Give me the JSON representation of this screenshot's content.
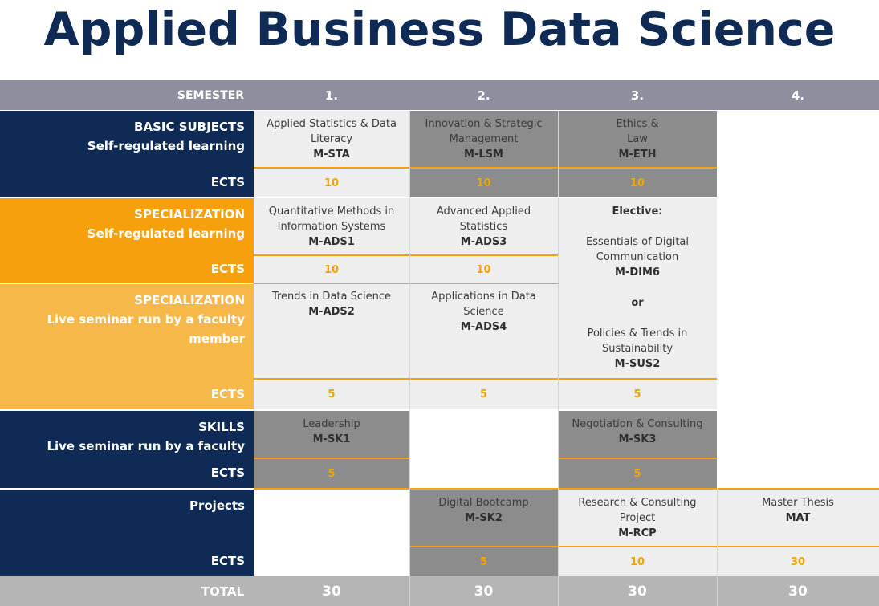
{
  "title": "Applied Business Data Science",
  "header": {
    "semester": "SEMESTER",
    "s1": "1.",
    "s2": "2.",
    "s3": "3.",
    "s4": "4."
  },
  "basic": {
    "label": "BASIC SUBJECTS",
    "sub": "Self-regulated learning",
    "ects": "ECTS",
    "m1": {
      "name1": "Applied Statistics & Data",
      "name2": "Literacy",
      "code": "M-STA",
      "ects": "10"
    },
    "m2": {
      "name1": "Innovation & Strategic",
      "name2": "Management",
      "code": "M-LSM",
      "ects": "10"
    },
    "m3": {
      "name1": "Ethics &",
      "name2": "Law",
      "code": "M-ETH",
      "ects": "10"
    }
  },
  "spec1": {
    "label": "SPECIALIZATION",
    "sub": "Self-regulated learning",
    "ects": "ECTS",
    "m1": {
      "name1": "Quantitative Methods in",
      "name2": "Information Systems",
      "code": "M-ADS1",
      "ects": "10"
    },
    "m2": {
      "name1": "Advanced Applied",
      "name2": "Statistics",
      "code": "M-ADS3",
      "ects": "10"
    }
  },
  "elective": {
    "heading": "Elective:",
    "a1": "Essentials of Digital",
    "a2": "Communication",
    "acode": "M-DIM6",
    "or": "or",
    "b1": "Policies & Trends in",
    "b2": "Sustainability",
    "bcode": "M-SUS2",
    "ects": "5"
  },
  "spec2": {
    "label": "SPECIALIZATION",
    "sub": "Live seminar run by a faculty member",
    "ects": "ECTS",
    "m1": {
      "name1": "Trends in Data Science",
      "code": "M-ADS2",
      "ects": "5"
    },
    "m2": {
      "name1": "Applications in Data",
      "name2": "Science",
      "code": "M-ADS4",
      "ects": "5"
    }
  },
  "skills": {
    "label": "SKILLS",
    "sub": "Live seminar run by a faculty member",
    "ects": "ECTS",
    "m1": {
      "name1": "Leadership",
      "code": "M-SK1",
      "ects": "5"
    },
    "m3": {
      "name1": "Negotiation & Consulting",
      "code": "M-SK3",
      "ects": "5"
    }
  },
  "projects": {
    "label": "Projects",
    "ects": "ECTS",
    "m2": {
      "name1": "Digital Bootcamp",
      "code": "M-SK2",
      "ects": "5"
    },
    "m3": {
      "name1": "Research & Consulting",
      "name2": "Project",
      "code": "M-RCP",
      "ects": "10"
    },
    "m4": {
      "name1": "Master Thesis",
      "code": "MAT",
      "ects": "30"
    }
  },
  "total": {
    "label": "TOTAL",
    "s1": "30",
    "s2": "30",
    "s3": "30",
    "s4": "30"
  },
  "colors": {
    "navy": "#0e2a55",
    "orange": "#f5a00c",
    "light_orange": "#f7b84a",
    "gray": "#8c8c8c",
    "ects_value": "#f0a400"
  }
}
